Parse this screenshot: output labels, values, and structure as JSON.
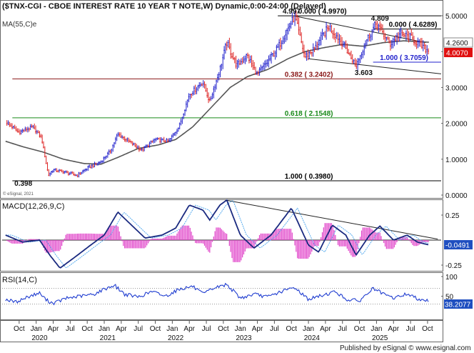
{
  "header": {
    "title": "($TNX-CGI - CBOE INTEREST RATE 10 YEAR T NOTE,W) Dynamic,0:00-24:00 (Delayed)",
    "ma_label": "MA(55,C)e",
    "copyright": "© eSignal, 2021"
  },
  "footer": {
    "published": "Published by eSignal © www.esignal.com"
  },
  "colors": {
    "up": "#2222cc",
    "down": "#dd2222",
    "ma": "#555555",
    "macd": "#1a2a80",
    "signal": "#55aaee",
    "hist": "#e040c8",
    "rsi": "#1e3cd0",
    "fib_red": "#8b1a1a",
    "fib_green": "#1a8a1a",
    "fib_blue": "#2222cc",
    "last_red": "#e01010",
    "last_blue": "#1f4fc0"
  },
  "chart_data": [
    {
      "type": "candlestick",
      "panel": "price",
      "y_ticks": [
        "5.0000",
        "4.0000",
        "3.0000",
        "2.0000",
        "1.0000",
        "0.0000"
      ],
      "ylim": [
        0,
        5.3
      ],
      "last_values": {
        "ma": "4.2600",
        "close": "4.0070"
      },
      "price_points": [
        {
          "t": 2019.55,
          "v": 2.05
        },
        {
          "t": 2019.75,
          "v": 1.75
        },
        {
          "t": 2019.95,
          "v": 1.9
        },
        {
          "t": 2020.08,
          "v": 1.6
        },
        {
          "t": 2020.18,
          "v": 0.55
        },
        {
          "t": 2020.25,
          "v": 0.7
        },
        {
          "t": 2020.4,
          "v": 0.65
        },
        {
          "t": 2020.6,
          "v": 0.55
        },
        {
          "t": 2020.8,
          "v": 0.8
        },
        {
          "t": 2020.95,
          "v": 0.92
        },
        {
          "t": 2021.1,
          "v": 1.25
        },
        {
          "t": 2021.2,
          "v": 1.7
        },
        {
          "t": 2021.4,
          "v": 1.45
        },
        {
          "t": 2021.55,
          "v": 1.25
        },
        {
          "t": 2021.75,
          "v": 1.55
        },
        {
          "t": 2021.95,
          "v": 1.5
        },
        {
          "t": 2022.1,
          "v": 1.9
        },
        {
          "t": 2022.25,
          "v": 2.8
        },
        {
          "t": 2022.45,
          "v": 3.15
        },
        {
          "t": 2022.55,
          "v": 2.6
        },
        {
          "t": 2022.7,
          "v": 3.5
        },
        {
          "t": 2022.8,
          "v": 4.25
        },
        {
          "t": 2022.95,
          "v": 3.6
        },
        {
          "t": 2023.1,
          "v": 3.9
        },
        {
          "t": 2023.25,
          "v": 3.35
        },
        {
          "t": 2023.4,
          "v": 3.7
        },
        {
          "t": 2023.55,
          "v": 4.1
        },
        {
          "t": 2023.8,
          "v": 4.99
        },
        {
          "t": 2023.95,
          "v": 3.85
        },
        {
          "t": 2024.1,
          "v": 4.1
        },
        {
          "t": 2024.3,
          "v": 4.7
        },
        {
          "t": 2024.5,
          "v": 4.25
        },
        {
          "t": 2024.7,
          "v": 3.6
        },
        {
          "t": 2024.85,
          "v": 4.3
        },
        {
          "t": 2025.0,
          "v": 4.8
        },
        {
          "t": 2025.2,
          "v": 4.2
        },
        {
          "t": 2025.35,
          "v": 4.5
        },
        {
          "t": 2025.5,
          "v": 4.4
        },
        {
          "t": 2025.7,
          "v": 4.1
        },
        {
          "t": 2025.78,
          "v": 4.007
        }
      ],
      "ma_points": [
        {
          "t": 2019.55,
          "v": 1.5
        },
        {
          "t": 2019.8,
          "v": 1.35
        },
        {
          "t": 2020.1,
          "v": 1.2
        },
        {
          "t": 2020.4,
          "v": 1.0
        },
        {
          "t": 2020.7,
          "v": 0.88
        },
        {
          "t": 2020.95,
          "v": 0.86
        },
        {
          "t": 2021.2,
          "v": 1.05
        },
        {
          "t": 2021.5,
          "v": 1.3
        },
        {
          "t": 2021.8,
          "v": 1.4
        },
        {
          "t": 2022.05,
          "v": 1.55
        },
        {
          "t": 2022.3,
          "v": 1.9
        },
        {
          "t": 2022.6,
          "v": 2.5
        },
        {
          "t": 2022.85,
          "v": 3.0
        },
        {
          "t": 2023.1,
          "v": 3.3
        },
        {
          "t": 2023.4,
          "v": 3.5
        },
        {
          "t": 2023.7,
          "v": 3.8
        },
        {
          "t": 2023.95,
          "v": 4.0
        },
        {
          "t": 2024.2,
          "v": 4.1
        },
        {
          "t": 2024.5,
          "v": 4.2
        },
        {
          "t": 2024.8,
          "v": 4.15
        },
        {
          "t": 2025.1,
          "v": 4.25
        },
        {
          "t": 2025.4,
          "v": 4.3
        },
        {
          "t": 2025.78,
          "v": 4.26
        }
      ],
      "fib_levels": [
        {
          "label": "0.000 ( 4.9970)",
          "value": 4.997,
          "color": "#000000",
          "t_label": 2023.85
        },
        {
          "label": "0.000 ( 4.6289)",
          "value": 4.6289,
          "color": "#000000",
          "t_label": 2025.18
        },
        {
          "label": "1.000 ( 3.7059)",
          "value": 3.7059,
          "color": "#2222cc",
          "t_label": 2025.05
        },
        {
          "label": "0.382 ( 3.2402)",
          "value": 3.2402,
          "color": "#8b1a1a",
          "t_label": 2023.65
        },
        {
          "label": "0.618 ( 2.1548)",
          "value": 2.1548,
          "color": "#1a8a1a",
          "t_label": 2023.65
        },
        {
          "label": "1.000 ( 0.3980)",
          "value": 0.398,
          "color": "#000000",
          "t_label": 2023.65
        }
      ],
      "point_labels": [
        {
          "text": "4.997",
          "t": 2023.62,
          "v": 5.06
        },
        {
          "text": "4.809",
          "t": 2024.92,
          "v": 4.86
        },
        {
          "text": "3.603",
          "t": 2024.68,
          "v": 3.35
        },
        {
          "text": "0.398",
          "t": 2019.68,
          "v": 0.26
        }
      ]
    },
    {
      "type": "line",
      "panel": "macd",
      "label": "MACD(12,26,9,C)",
      "y_ticks": [
        "0.25",
        "-0.25"
      ],
      "last_value": "-0.0491",
      "macd_points": [
        {
          "t": 2019.55,
          "v": 0.05
        },
        {
          "t": 2019.8,
          "v": -0.02
        },
        {
          "t": 2020.05,
          "v": 0.0
        },
        {
          "t": 2020.2,
          "v": -0.15
        },
        {
          "t": 2020.35,
          "v": -0.28
        },
        {
          "t": 2020.55,
          "v": -0.18
        },
        {
          "t": 2020.8,
          "v": -0.05
        },
        {
          "t": 2021.0,
          "v": 0.05
        },
        {
          "t": 2021.2,
          "v": 0.28
        },
        {
          "t": 2021.4,
          "v": 0.15
        },
        {
          "t": 2021.6,
          "v": 0.02
        },
        {
          "t": 2021.85,
          "v": 0.05
        },
        {
          "t": 2022.05,
          "v": 0.12
        },
        {
          "t": 2022.25,
          "v": 0.35
        },
        {
          "t": 2022.45,
          "v": 0.3
        },
        {
          "t": 2022.55,
          "v": 0.2
        },
        {
          "t": 2022.7,
          "v": 0.35
        },
        {
          "t": 2022.8,
          "v": 0.4
        },
        {
          "t": 2023.0,
          "v": 0.05
        },
        {
          "t": 2023.2,
          "v": -0.08
        },
        {
          "t": 2023.45,
          "v": 0.05
        },
        {
          "t": 2023.75,
          "v": 0.32
        },
        {
          "t": 2024.0,
          "v": -0.05
        },
        {
          "t": 2024.15,
          "v": -0.12
        },
        {
          "t": 2024.35,
          "v": 0.15
        },
        {
          "t": 2024.55,
          "v": 0.05
        },
        {
          "t": 2024.7,
          "v": -0.15
        },
        {
          "t": 2024.9,
          "v": 0.05
        },
        {
          "t": 2025.05,
          "v": 0.14
        },
        {
          "t": 2025.25,
          "v": 0.0
        },
        {
          "t": 2025.45,
          "v": 0.05
        },
        {
          "t": 2025.6,
          "v": -0.02
        },
        {
          "t": 2025.78,
          "v": -0.0491
        }
      ]
    },
    {
      "type": "line",
      "panel": "rsi",
      "label": "RSI(14,C)",
      "y_ticks": [
        "100",
        "50"
      ],
      "last_value": "38.2077",
      "rsi_points": [
        {
          "t": 2019.55,
          "v": 42
        },
        {
          "t": 2019.7,
          "v": 35
        },
        {
          "t": 2019.9,
          "v": 50
        },
        {
          "t": 2020.05,
          "v": 58
        },
        {
          "t": 2020.15,
          "v": 40
        },
        {
          "t": 2020.25,
          "v": 32
        },
        {
          "t": 2020.45,
          "v": 45
        },
        {
          "t": 2020.65,
          "v": 50
        },
        {
          "t": 2020.85,
          "v": 55
        },
        {
          "t": 2021.0,
          "v": 68
        },
        {
          "t": 2021.15,
          "v": 78
        },
        {
          "t": 2021.3,
          "v": 55
        },
        {
          "t": 2021.5,
          "v": 48
        },
        {
          "t": 2021.7,
          "v": 62
        },
        {
          "t": 2021.9,
          "v": 50
        },
        {
          "t": 2022.1,
          "v": 68
        },
        {
          "t": 2022.3,
          "v": 75
        },
        {
          "t": 2022.45,
          "v": 55
        },
        {
          "t": 2022.6,
          "v": 70
        },
        {
          "t": 2022.8,
          "v": 80
        },
        {
          "t": 2023.0,
          "v": 45
        },
        {
          "t": 2023.2,
          "v": 55
        },
        {
          "t": 2023.4,
          "v": 48
        },
        {
          "t": 2023.6,
          "v": 62
        },
        {
          "t": 2023.8,
          "v": 72
        },
        {
          "t": 2024.0,
          "v": 42
        },
        {
          "t": 2024.2,
          "v": 52
        },
        {
          "t": 2024.4,
          "v": 62
        },
        {
          "t": 2024.55,
          "v": 42
        },
        {
          "t": 2024.75,
          "v": 38
        },
        {
          "t": 2024.95,
          "v": 70
        },
        {
          "t": 2025.1,
          "v": 55
        },
        {
          "t": 2025.25,
          "v": 45
        },
        {
          "t": 2025.45,
          "v": 56
        },
        {
          "t": 2025.6,
          "v": 44
        },
        {
          "t": 2025.78,
          "v": 38.2
        }
      ]
    }
  ],
  "x_axis": {
    "ticks": [
      {
        "label": "Oct",
        "t": 2019.75
      },
      {
        "label": "Jan",
        "t": 2020.0
      },
      {
        "label": "Apr",
        "t": 2020.25
      },
      {
        "label": "Jul",
        "t": 2020.5
      },
      {
        "label": "Oct",
        "t": 2020.75
      },
      {
        "label": "Jan",
        "t": 2021.0
      },
      {
        "label": "Apr",
        "t": 2021.25
      },
      {
        "label": "Jul",
        "t": 2021.5
      },
      {
        "label": "Oct",
        "t": 2021.75
      },
      {
        "label": "Jan",
        "t": 2022.0
      },
      {
        "label": "Apr",
        "t": 2022.25
      },
      {
        "label": "Jul",
        "t": 2022.5
      },
      {
        "label": "Oct",
        "t": 2022.75
      },
      {
        "label": "Jan",
        "t": 2023.0
      },
      {
        "label": "Apr",
        "t": 2023.25
      },
      {
        "label": "Jul",
        "t": 2023.5
      },
      {
        "label": "Oct",
        "t": 2023.75
      },
      {
        "label": "Jan",
        "t": 2024.0
      },
      {
        "label": "Apr",
        "t": 2024.25
      },
      {
        "label": "Jul",
        "t": 2024.5
      },
      {
        "label": "Oct",
        "t": 2024.75
      },
      {
        "label": "Jan",
        "t": 2025.0
      },
      {
        "label": "Apr",
        "t": 2025.25
      },
      {
        "label": "Jul",
        "t": 2025.5
      },
      {
        "label": "Oct",
        "t": 2025.75
      }
    ],
    "years": [
      {
        "label": "2020",
        "t": 2020.05
      },
      {
        "label": "2021",
        "t": 2021.05
      },
      {
        "label": "2022",
        "t": 2022.05
      },
      {
        "label": "2023",
        "t": 2023.05
      },
      {
        "label": "2024",
        "t": 2024.05
      },
      {
        "label": "2025",
        "t": 2025.05
      }
    ]
  }
}
